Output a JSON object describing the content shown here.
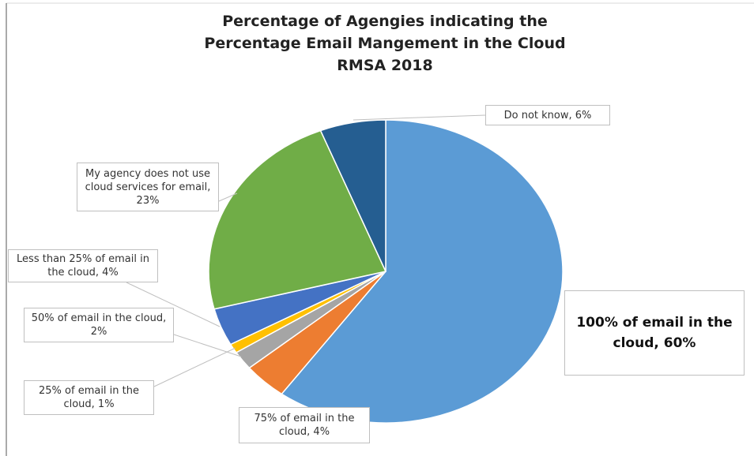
{
  "chart_data": {
    "type": "pie",
    "title": [
      "Percentage of Agengies indicating the",
      "Percentage Email Mangement in the Cloud",
      "RMSA 2018"
    ],
    "categories": [
      "100% of email in the cloud, 60%",
      "75% of email in the cloud, 4%",
      "50% of email in the cloud, 2%",
      "25% of email in the cloud, 1%",
      "Less than 25% of email in the cloud, 4%",
      "My agency does not use cloud services for email, 23%",
      "Do not know, 6%"
    ],
    "values": [
      60,
      4,
      2,
      1,
      4,
      23,
      6
    ],
    "colors": [
      "#5b9bd5",
      "#ed7d31",
      "#a5a5a5",
      "#ffc000",
      "#4472c4",
      "#70ad47",
      "#255e91"
    ]
  }
}
